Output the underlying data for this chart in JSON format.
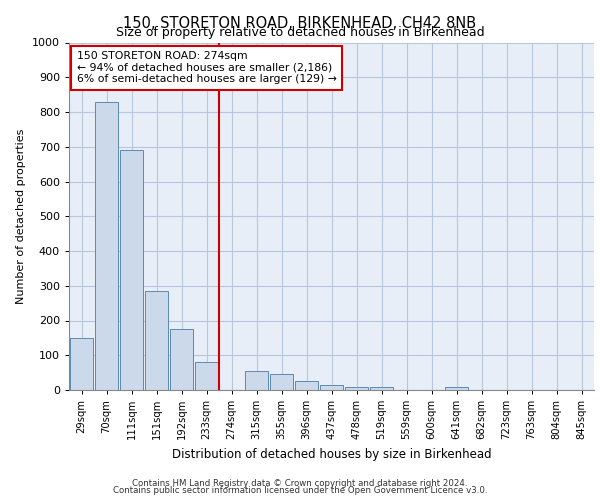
{
  "title": "150, STORETON ROAD, BIRKENHEAD, CH42 8NB",
  "subtitle": "Size of property relative to detached houses in Birkenhead",
  "xlabel": "Distribution of detached houses by size in Birkenhead",
  "ylabel": "Number of detached properties",
  "footer_line1": "Contains HM Land Registry data © Crown copyright and database right 2024.",
  "footer_line2": "Contains public sector information licensed under the Open Government Licence v3.0.",
  "bar_color": "#ccd9ea",
  "bar_edge_color": "#5b8ab5",
  "background_color": "#e8eef8",
  "grid_color": "#b8c8dc",
  "annotation_line_color": "#cc0000",
  "annotation_box_color": "#cc0000",
  "annotation_text_line1": "150 STORETON ROAD: 274sqm",
  "annotation_text_line2": "← 94% of detached houses are smaller (2,186)",
  "annotation_text_line3": "6% of semi-detached houses are larger (129) →",
  "vline_bin_index": 6,
  "ylim": [
    0,
    1000
  ],
  "yticks": [
    0,
    100,
    200,
    300,
    400,
    500,
    600,
    700,
    800,
    900,
    1000
  ],
  "categories": [
    "29sqm",
    "70sqm",
    "111sqm",
    "151sqm",
    "192sqm",
    "233sqm",
    "274sqm",
    "315sqm",
    "355sqm",
    "396sqm",
    "437sqm",
    "478sqm",
    "519sqm",
    "559sqm",
    "600sqm",
    "641sqm",
    "682sqm",
    "723sqm",
    "763sqm",
    "804sqm",
    "845sqm"
  ],
  "bar_values": [
    150,
    830,
    690,
    285,
    175,
    80,
    0,
    55,
    45,
    25,
    15,
    10,
    10,
    0,
    0,
    10,
    0,
    0,
    0,
    0,
    0
  ],
  "bin_centers": [
    0,
    1,
    2,
    3,
    4,
    5,
    6,
    7,
    8,
    9,
    10,
    11,
    12,
    13,
    14,
    15,
    16,
    17,
    18,
    19,
    20
  ]
}
